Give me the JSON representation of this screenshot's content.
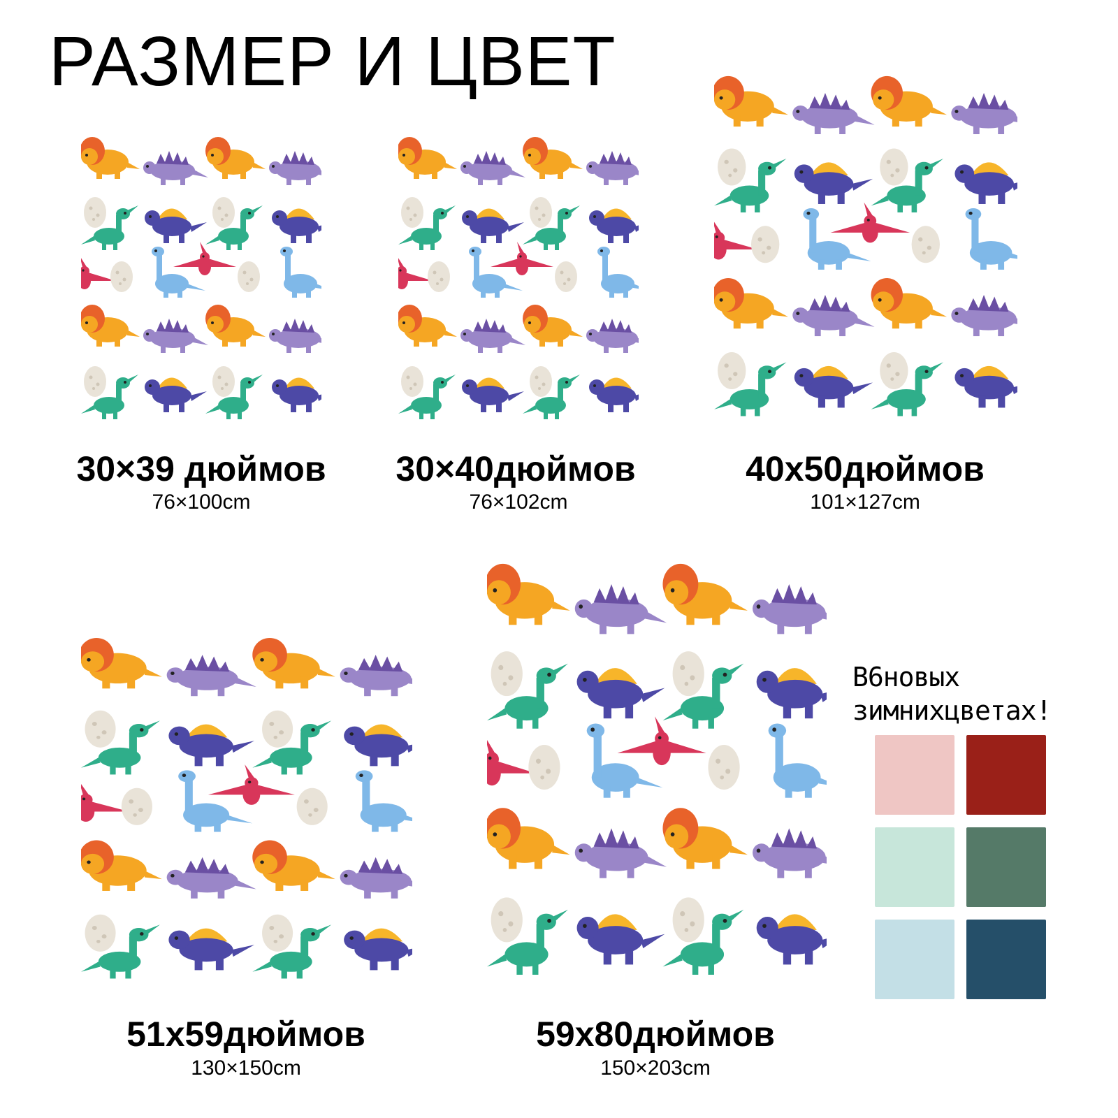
{
  "title": "РАЗМЕР И ЦВЕТ",
  "products": [
    {
      "size_in": "30×39 дюймов",
      "size_cm": "76×100cm"
    },
    {
      "size_in": "30×40дюймов",
      "size_cm": "76×102cm"
    },
    {
      "size_in": "40x50дюймов",
      "size_cm": "101×127cm"
    },
    {
      "size_in": "51x59дюймов",
      "size_cm": "130×150cm"
    },
    {
      "size_in": "59x80дюймов",
      "size_cm": "150×203cm"
    }
  ],
  "colors": {
    "heading_line1": "В6новых",
    "heading_line2": "зимнихцветах!",
    "swatches": [
      "#efc6c4",
      "#9a2018",
      "#c7e6da",
      "#557a68",
      "#c3dfe6",
      "#254f69"
    ]
  },
  "pattern_colors": {
    "triceratops": "#f5a623",
    "frill": "#e8622a",
    "stegosaurus": "#9a86c8",
    "plates": "#6a4fa3",
    "parasaurolophus": "#2fae8a",
    "spinosaurus": "#4d49a6",
    "sail": "#f7b52a",
    "brachiosaurus": "#7fb8e8",
    "pterodactyl": "#d8365a",
    "egg": "#e9e3d8"
  }
}
